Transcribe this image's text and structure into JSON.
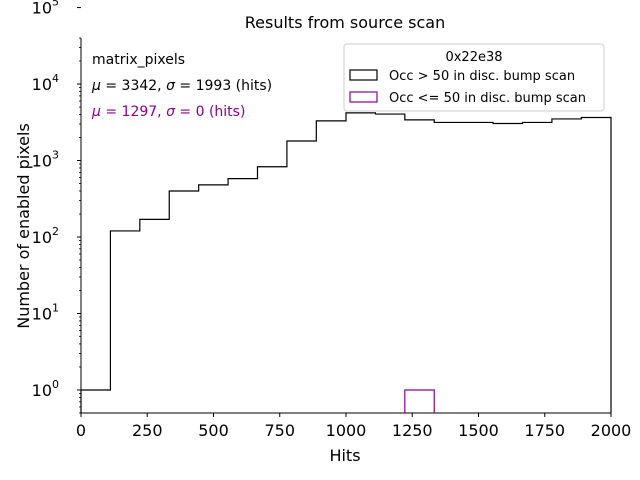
{
  "chart_data": {
    "type": "histogram",
    "title": "Results from source scan",
    "xlabel": "Hits",
    "ylabel": "Number of enabled pixels",
    "xlim": [
      0,
      2000
    ],
    "ylim": [
      0.5,
      40000
    ],
    "yscale": "log",
    "x_ticks": [
      0,
      250,
      500,
      750,
      1000,
      1250,
      1500,
      1750,
      2000
    ],
    "y_ticks": [
      {
        "value": 1,
        "label_base": "10",
        "label_exp": "0"
      },
      {
        "value": 10,
        "label_base": "10",
        "label_exp": "1"
      },
      {
        "value": 100,
        "label_base": "10",
        "label_exp": "2"
      },
      {
        "value": 1000,
        "label_base": "10",
        "label_exp": "3"
      },
      {
        "value": 10000,
        "label_base": "10",
        "label_exp": "4"
      },
      {
        "value": 100000,
        "label_base": "10",
        "label_exp": "5"
      }
    ],
    "legend": {
      "title": "0x22e38",
      "position": "top-right"
    },
    "annotations": {
      "name": "matrix_pixels",
      "stats": [
        {
          "mu": "3342",
          "sigma": "1993",
          "unit": "(hits)",
          "color": "#000000"
        },
        {
          "mu": "1297",
          "sigma": "0",
          "unit": "(hits)",
          "color": "#8b008b"
        }
      ]
    },
    "series": [
      {
        "name": "Occ > 50 in disc. bump scan",
        "color": "#000000",
        "bin_edges": [
          0,
          111,
          222,
          333,
          444,
          555,
          666,
          777,
          888,
          1000,
          1111,
          1222,
          1333,
          1444,
          1555,
          1666,
          1777,
          1888,
          2000
        ],
        "counts": [
          1,
          120,
          170,
          400,
          480,
          580,
          830,
          1800,
          3300,
          4200,
          4050,
          3400,
          3150,
          3150,
          3050,
          3150,
          3500,
          3650
        ]
      },
      {
        "name": "Occ <= 50 in disc. bump scan",
        "color": "#8b008b",
        "bin_edges": [
          1222,
          1333
        ],
        "counts": [
          1
        ]
      }
    ]
  }
}
